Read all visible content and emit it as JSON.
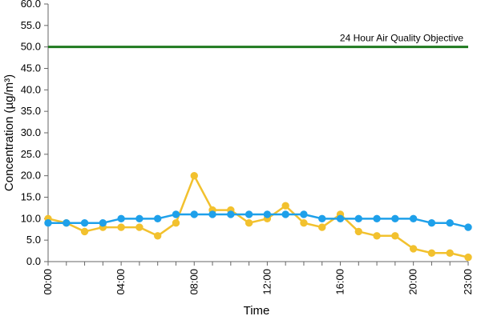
{
  "chart_data": {
    "type": "line",
    "title": "",
    "xlabel": "Time",
    "ylabel": "Concentration (µg/m³)",
    "ylim": [
      0,
      60
    ],
    "y_ticks": [
      "0.0",
      "5.0",
      "10.0",
      "15.0",
      "20.0",
      "25.0",
      "30.0",
      "35.0",
      "40.0",
      "45.0",
      "50.0",
      "55.0",
      "60.0"
    ],
    "x": [
      "00:00",
      "01:00",
      "02:00",
      "03:00",
      "04:00",
      "05:00",
      "06:00",
      "07:00",
      "08:00",
      "09:00",
      "10:00",
      "11:00",
      "12:00",
      "13:00",
      "14:00",
      "15:00",
      "16:00",
      "17:00",
      "18:00",
      "19:00",
      "20:00",
      "21:00",
      "22:00",
      "23:00"
    ],
    "x_ticks": [
      "00:00",
      "04:00",
      "08:00",
      "12:00",
      "16:00",
      "20:00",
      "23:00"
    ],
    "grid": false,
    "reference_line": {
      "label": "24 Hour Air Quality Objective",
      "value": 50,
      "color": "#1f7a1f"
    },
    "series": [
      {
        "color": "#f2c12e",
        "values": [
          10,
          9,
          7,
          8,
          8,
          8,
          6,
          9,
          20,
          12,
          12,
          9,
          10,
          13,
          9,
          8,
          11,
          7,
          6,
          6,
          3,
          2,
          2,
          1
        ]
      },
      {
        "color": "#1ea0ea",
        "values": [
          9,
          9,
          9,
          9,
          10,
          10,
          10,
          11,
          11,
          11,
          11,
          11,
          11,
          11,
          11,
          10,
          10,
          10,
          10,
          10,
          10,
          9,
          9,
          8
        ]
      }
    ]
  }
}
